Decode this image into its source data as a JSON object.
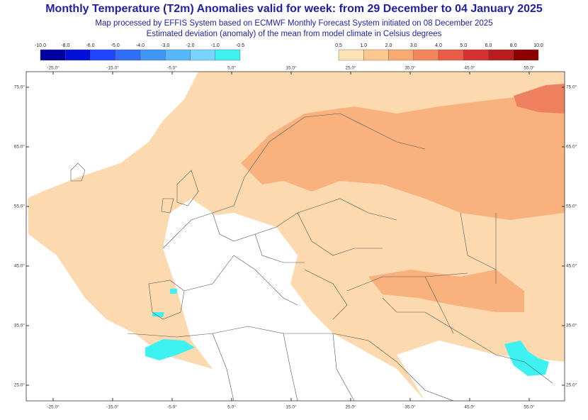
{
  "header": {
    "title": "Monthly Temperature (T2m) Anomalies valid for week: from 29 December to 04 January 2025",
    "lines": [
      "Map processed by EFFIS System based on ECMWF Monthly Forecast System initiated on 08 December 2025",
      "Estimated deviation (anomaly) of the mean from model climate in Celsius degrees"
    ]
  },
  "legend": {
    "negative": {
      "labels": [
        "-10.0",
        "-8.0",
        "-6.0",
        "-5.0",
        "-4.0",
        "-3.0",
        "-2.0",
        "-1.0",
        "-0.5"
      ],
      "colors": [
        "#0000a0",
        "#0010d8",
        "#1e46ff",
        "#2f6ef7",
        "#3f96f5",
        "#55b8fb",
        "#7ad4ff",
        "#3ff2f2"
      ]
    },
    "positive": {
      "labels": [
        "0.5",
        "1.0",
        "2.0",
        "3.0",
        "4.0",
        "5.0",
        "6.0",
        "8.0",
        "10.0"
      ],
      "colors": [
        "#fde2b6",
        "#fcc890",
        "#f9aa72",
        "#f3865c",
        "#e95c45",
        "#d73232",
        "#b91c1c",
        "#8b0000"
      ]
    }
  },
  "map": {
    "lon_labels": [
      "-25.0°",
      "-15.0°",
      "-5.0°",
      "5.0°",
      "15.0°",
      "25.0°",
      "35.0°",
      "45.0°",
      "55.0°"
    ],
    "lat_labels": [
      "75.0°",
      "65.0°",
      "55.0°",
      "45.0°",
      "35.0°",
      "25.0°"
    ]
  }
}
